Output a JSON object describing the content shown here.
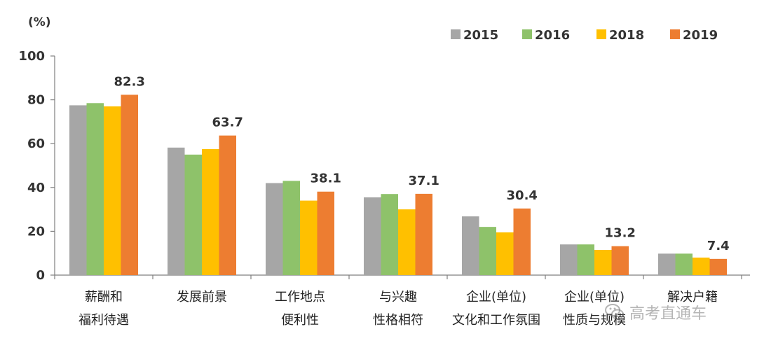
{
  "chart_data": {
    "type": "bar",
    "ylabel": "(%)",
    "ylim": [
      0,
      100
    ],
    "yticks": [
      0,
      20,
      40,
      60,
      80,
      100
    ],
    "grid": false,
    "legend_position": "top-right",
    "categories": [
      [
        "薪酬和",
        "福利待遇"
      ],
      [
        "发展前景"
      ],
      [
        "工作地点",
        "便利性"
      ],
      [
        "与兴趣",
        "性格相符"
      ],
      [
        "企业(单位)",
        "文化和工作氛围"
      ],
      [
        "企业(单位)",
        "性质与规模"
      ],
      [
        "解决户籍"
      ]
    ],
    "series": [
      {
        "name": "2015",
        "color": "#a6a6a6",
        "values": [
          77.5,
          58.2,
          42.0,
          35.5,
          26.8,
          14.0,
          9.8
        ]
      },
      {
        "name": "2016",
        "color": "#8ec26a",
        "values": [
          78.5,
          55.0,
          43.0,
          37.0,
          22.0,
          14.0,
          9.8
        ]
      },
      {
        "name": "2018",
        "color": "#ffc000",
        "values": [
          77.0,
          57.5,
          34.0,
          30.0,
          19.5,
          11.5,
          8.0
        ]
      },
      {
        "name": "2019",
        "color": "#ed7d31",
        "values": [
          82.3,
          63.7,
          38.1,
          37.1,
          30.4,
          13.2,
          7.4
        ]
      }
    ],
    "data_labels": [
      "82.3",
      "63.7",
      "38.1",
      "37.1",
      "30.4",
      "13.2",
      "7.4"
    ]
  },
  "watermark": {
    "text": "高考直通车",
    "icon": "wechat-icon"
  }
}
